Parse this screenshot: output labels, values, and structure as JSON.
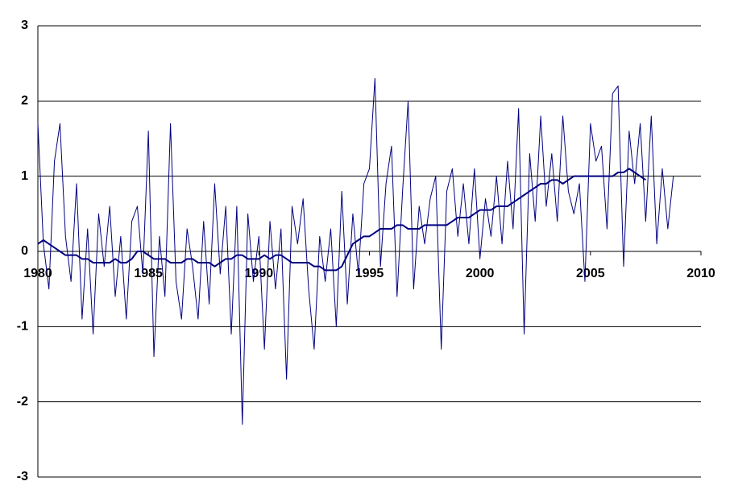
{
  "chart_data": {
    "type": "line",
    "x": [
      1980,
      1980.25,
      1980.5,
      1980.75,
      1981,
      1981.25,
      1981.5,
      1981.75,
      1982,
      1982.25,
      1982.5,
      1982.75,
      1983,
      1983.25,
      1983.5,
      1983.75,
      1984,
      1984.25,
      1984.5,
      1984.75,
      1985,
      1985.25,
      1985.5,
      1985.75,
      1986,
      1986.25,
      1986.5,
      1986.75,
      1987,
      1987.25,
      1987.5,
      1987.75,
      1988,
      1988.25,
      1988.5,
      1988.75,
      1989,
      1989.25,
      1989.5,
      1989.75,
      1990,
      1990.25,
      1990.5,
      1990.75,
      1991,
      1991.25,
      1991.5,
      1991.75,
      1992,
      1992.25,
      1992.5,
      1992.75,
      1993,
      1993.25,
      1993.5,
      1993.75,
      1994,
      1994.25,
      1994.5,
      1994.75,
      1995,
      1995.25,
      1995.5,
      1995.75,
      1996,
      1996.25,
      1996.5,
      1996.75,
      1997,
      1997.25,
      1997.5,
      1997.75,
      1998,
      1998.25,
      1998.5,
      1998.75,
      1999,
      1999.25,
      1999.5,
      1999.75,
      2000,
      2000.25,
      2000.5,
      2000.75,
      2001,
      2001.25,
      2001.5,
      2001.75,
      2002,
      2002.25,
      2002.5,
      2002.75,
      2003,
      2003.25,
      2003.5,
      2003.75,
      2004,
      2004.25,
      2004.5,
      2004.75,
      2005,
      2005.25,
      2005.5,
      2005.75,
      2006,
      2006.25,
      2006.5,
      2006.75,
      2007,
      2007.25,
      2007.5,
      2007.75,
      2008,
      2008.25,
      2008.5,
      2008.75
    ],
    "series": [
      {
        "color": "#000080",
        "width": 1,
        "values": [
          1.7,
          0.1,
          -0.5,
          1.2,
          1.7,
          0.2,
          -0.4,
          0.9,
          -0.9,
          0.3,
          -1.1,
          0.5,
          -0.2,
          0.6,
          -0.6,
          0.2,
          -0.9,
          0.4,
          0.6,
          -0.3,
          1.6,
          -1.4,
          0.2,
          -0.6,
          1.7,
          -0.4,
          -0.9,
          0.3,
          -0.2,
          -0.9,
          0.4,
          -0.7,
          0.9,
          -0.3,
          0.6,
          -1.1,
          0.6,
          -2.3,
          0.5,
          -0.4,
          0.2,
          -1.3,
          0.4,
          -0.5,
          0.3,
          -1.7,
          0.6,
          0.1,
          0.7,
          -0.5,
          -1.3,
          0.2,
          -0.4,
          0.3,
          -1.0,
          0.8,
          -0.7,
          0.5,
          -0.3,
          0.9,
          1.1,
          2.3,
          -0.2,
          0.9,
          1.4,
          -0.6,
          0.8,
          2.0,
          -0.5,
          0.6,
          0.1,
          0.7,
          1.0,
          -1.3,
          0.8,
          1.1,
          0.2,
          0.9,
          0.1,
          1.1,
          -0.1,
          0.7,
          0.2,
          1.0,
          0.1,
          1.2,
          0.3,
          1.9,
          -1.1,
          1.3,
          0.4,
          1.8,
          0.6,
          1.3,
          0.4,
          1.8,
          0.8,
          0.5,
          0.9,
          -0.4,
          1.7,
          1.2,
          1.4,
          0.3,
          2.1,
          2.2,
          -0.2,
          1.6,
          0.9,
          1.7,
          0.4,
          1.8,
          0.1,
          1.1,
          0.3,
          1.0
        ]
      },
      {
        "color": "#000080",
        "width": 2,
        "values": [
          0.1,
          0.15,
          0.1,
          0.05,
          0,
          -0.05,
          -0.05,
          -0.05,
          -0.1,
          -0.1,
          -0.15,
          -0.15,
          -0.15,
          -0.15,
          -0.1,
          -0.15,
          -0.15,
          -0.1,
          0,
          0,
          -0.05,
          -0.1,
          -0.1,
          -0.1,
          -0.15,
          -0.15,
          -0.15,
          -0.1,
          -0.1,
          -0.15,
          -0.15,
          -0.15,
          -0.2,
          -0.15,
          -0.1,
          -0.1,
          -0.05,
          -0.05,
          -0.1,
          -0.1,
          -0.1,
          -0.05,
          -0.1,
          -0.05,
          -0.05,
          -0.1,
          -0.15,
          -0.15,
          -0.15,
          -0.15,
          -0.2,
          -0.2,
          -0.25,
          -0.25,
          -0.25,
          -0.2,
          -0.05,
          0.1,
          0.15,
          0.2,
          0.2,
          0.25,
          0.3,
          0.3,
          0.3,
          0.35,
          0.35,
          0.3,
          0.3,
          0.3,
          0.35,
          0.35,
          0.35,
          0.35,
          0.35,
          0.4,
          0.45,
          0.45,
          0.45,
          0.5,
          0.55,
          0.55,
          0.55,
          0.6,
          0.6,
          0.6,
          0.65,
          0.7,
          0.75,
          0.8,
          0.85,
          0.9,
          0.9,
          0.95,
          0.95,
          0.9,
          0.95,
          1.0,
          1.0,
          1.0,
          1.0,
          1.0,
          1.0,
          1.0,
          1.0,
          1.05,
          1.05,
          1.1,
          1.05,
          1.0,
          0.95,
          null,
          null,
          null,
          null,
          null
        ]
      }
    ],
    "xlim": [
      1980,
      2010
    ],
    "xticks": [
      1980,
      1985,
      1990,
      1995,
      2000,
      2005,
      2010
    ],
    "ylim": [
      -3,
      3
    ],
    "yticks": [
      -3,
      -2,
      -1,
      0,
      1,
      2,
      3
    ],
    "grid": true
  }
}
